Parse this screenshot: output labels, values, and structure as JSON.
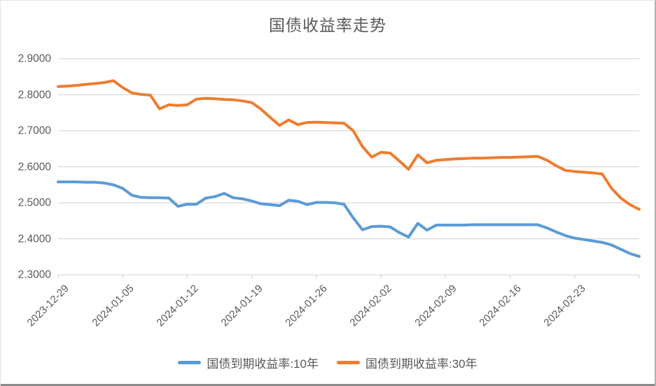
{
  "window": {
    "bottom_edge_color": "#8a8a8a",
    "background_color": "#ffffff"
  },
  "chart_data": {
    "type": "line",
    "title": "国债收益率走势",
    "grid": true,
    "legend_position": "bottom",
    "ylim": [
      2.3,
      2.9
    ],
    "y_ticks": [
      2.9,
      2.8,
      2.7,
      2.6,
      2.5,
      2.4,
      2.3
    ],
    "y_tick_labels": [
      "2.9000",
      "2.8000",
      "2.7000",
      "2.6000",
      "2.5000",
      "2.4000",
      "2.3000"
    ],
    "x_tick_labels": [
      "2023-12-29",
      "2024-01-05",
      "2024-01-12",
      "2024-01-19",
      "2024-01-26",
      "2024-02-02",
      "2024-02-09",
      "2024-02-16",
      "2024-02-23"
    ],
    "x_tick_every": 7,
    "x": [
      "2023-12-29",
      "2023-12-30",
      "2023-12-31",
      "2024-01-01",
      "2024-01-02",
      "2024-01-03",
      "2024-01-04",
      "2024-01-05",
      "2024-01-06",
      "2024-01-07",
      "2024-01-08",
      "2024-01-09",
      "2024-01-10",
      "2024-01-11",
      "2024-01-12",
      "2024-01-13",
      "2024-01-14",
      "2024-01-15",
      "2024-01-16",
      "2024-01-17",
      "2024-01-18",
      "2024-01-19",
      "2024-01-20",
      "2024-01-21",
      "2024-01-22",
      "2024-01-23",
      "2024-01-24",
      "2024-01-25",
      "2024-01-26",
      "2024-01-27",
      "2024-01-28",
      "2024-01-29",
      "2024-01-30",
      "2024-01-31",
      "2024-02-01",
      "2024-02-02",
      "2024-02-03",
      "2024-02-04",
      "2024-02-05",
      "2024-02-06",
      "2024-02-07",
      "2024-02-08",
      "2024-02-09",
      "2024-02-10",
      "2024-02-11",
      "2024-02-12",
      "2024-02-13",
      "2024-02-14",
      "2024-02-15",
      "2024-02-16",
      "2024-02-17",
      "2024-02-18",
      "2024-02-19",
      "2024-02-20",
      "2024-02-21",
      "2024-02-22",
      "2024-02-23",
      "2024-02-24",
      "2024-02-25",
      "2024-02-26",
      "2024-02-27",
      "2024-02-28",
      "2024-02-29",
      "2024-03-01"
    ],
    "series": [
      {
        "name": "国债到期收益率:10年",
        "color": "#5B9BD5",
        "values": [
          2.558,
          2.558,
          2.558,
          2.557,
          2.557,
          2.555,
          2.55,
          2.54,
          2.521,
          2.515,
          2.514,
          2.514,
          2.513,
          2.49,
          2.496,
          2.496,
          2.513,
          2.517,
          2.526,
          2.514,
          2.511,
          2.505,
          2.497,
          2.495,
          2.492,
          2.507,
          2.504,
          2.495,
          2.501,
          2.501,
          2.5,
          2.496,
          2.458,
          2.425,
          2.434,
          2.435,
          2.433,
          2.417,
          2.405,
          2.443,
          2.424,
          2.438,
          2.438,
          2.438,
          2.438,
          2.439,
          2.439,
          2.439,
          2.439,
          2.439,
          2.439,
          2.439,
          2.439,
          2.43,
          2.419,
          2.409,
          2.402,
          2.398,
          2.394,
          2.39,
          2.383,
          2.371,
          2.359,
          2.351
        ]
      },
      {
        "name": "国债到期收益率:30年",
        "color": "#ED7D31",
        "values": [
          2.823,
          2.824,
          2.826,
          2.829,
          2.831,
          2.834,
          2.839,
          2.82,
          2.805,
          2.801,
          2.799,
          2.761,
          2.772,
          2.77,
          2.772,
          2.788,
          2.79,
          2.789,
          2.787,
          2.786,
          2.783,
          2.778,
          2.76,
          2.737,
          2.715,
          2.73,
          2.717,
          2.723,
          2.724,
          2.723,
          2.722,
          2.721,
          2.7,
          2.656,
          2.627,
          2.64,
          2.638,
          2.616,
          2.593,
          2.633,
          2.611,
          2.618,
          2.62,
          2.622,
          2.623,
          2.624,
          2.624,
          2.625,
          2.626,
          2.626,
          2.627,
          2.628,
          2.629,
          2.618,
          2.603,
          2.59,
          2.587,
          2.585,
          2.583,
          2.58,
          2.54,
          2.513,
          2.495,
          2.482
        ]
      }
    ],
    "colors": {
      "grid": "#D9D9D9",
      "axis_text": "#595959",
      "title_text": "#595959"
    }
  }
}
